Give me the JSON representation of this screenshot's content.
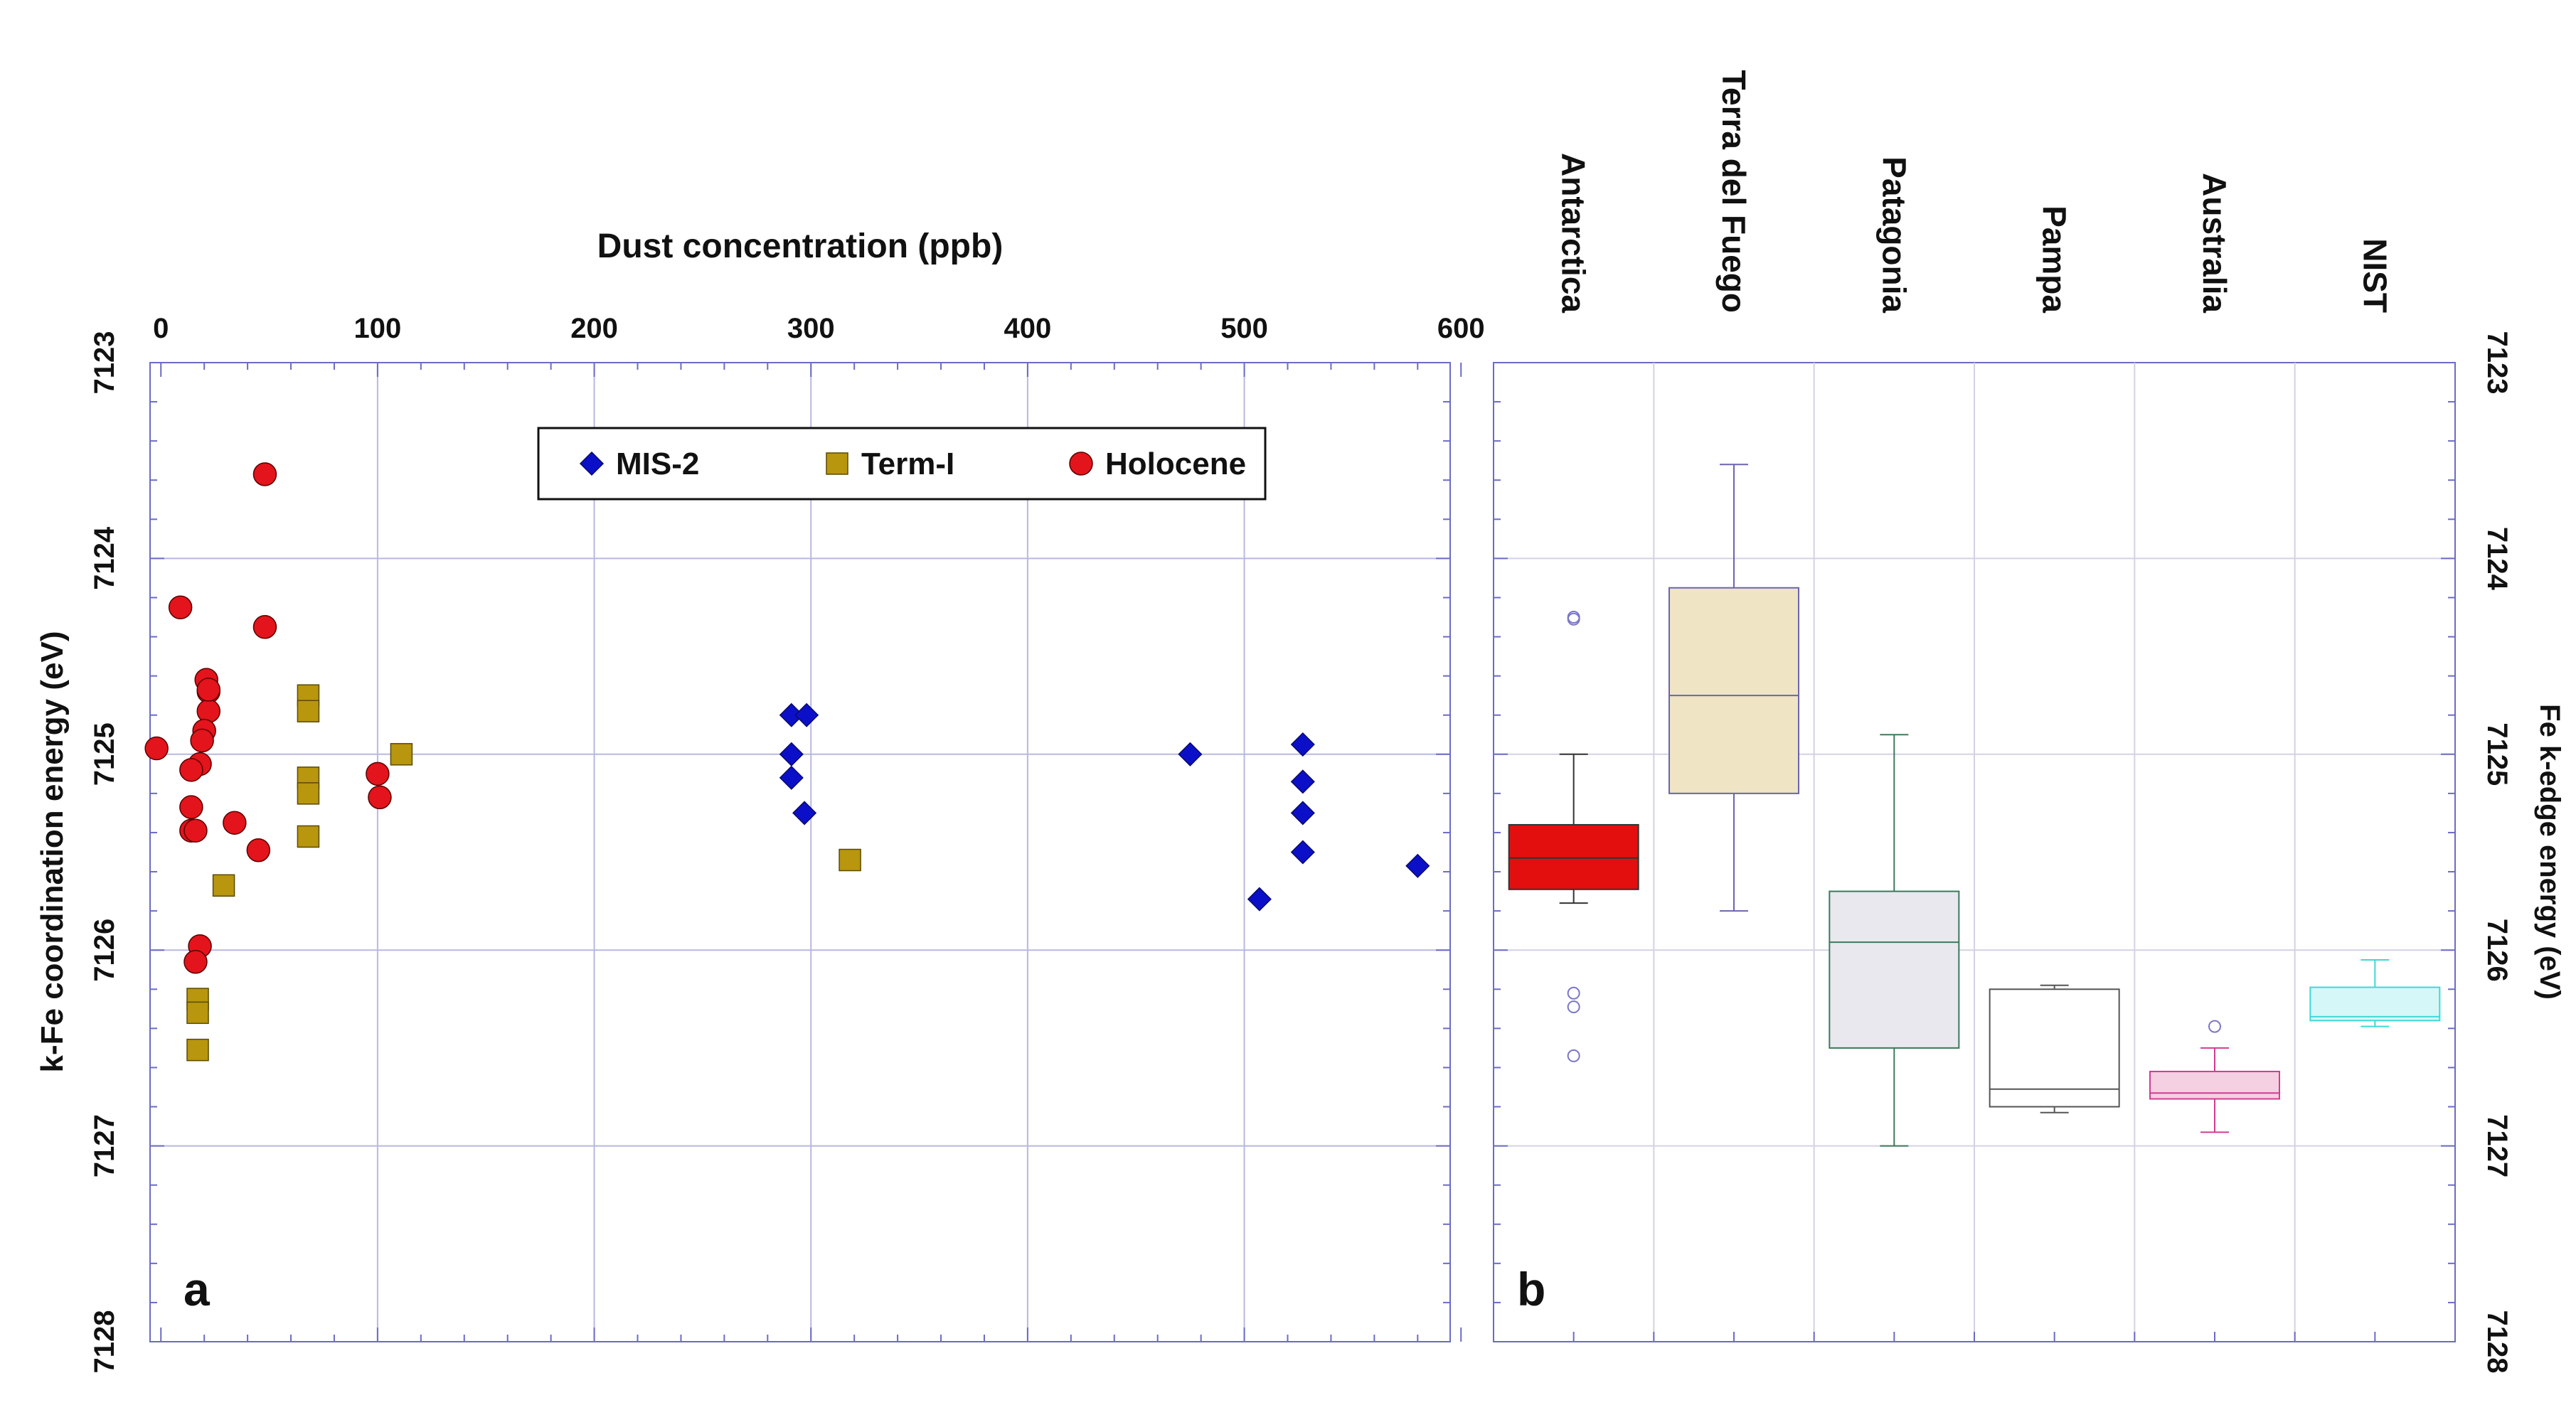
{
  "chart_data": [
    {
      "panel": "a",
      "type": "scatter",
      "panel_label": "a",
      "xlabel": "Dust concentration (ppb)",
      "ylabel": "k-Fe coordination energy (eV)",
      "xlim": [
        -5,
        595
      ],
      "ylim": [
        7123,
        7128
      ],
      "y_inverted": true,
      "x_ticks": [
        "0",
        "100",
        "200",
        "300",
        "400",
        "500",
        "600"
      ],
      "x_tick_values": [
        0,
        100,
        200,
        300,
        400,
        500,
        600
      ],
      "y_ticks": [
        "7123",
        "7124",
        "7125",
        "7126",
        "7127",
        "7128"
      ],
      "y_tick_values": [
        7123,
        7124,
        7125,
        7126,
        7127,
        7128
      ],
      "legend_position": "top-center",
      "series": [
        {
          "name": "MIS-2",
          "marker": "diamond",
          "color": "#0b10c8",
          "points": [
            [
              291,
              7124.8
            ],
            [
              298,
              7124.8
            ],
            [
              291,
              7125.0
            ],
            [
              291,
              7125.12
            ],
            [
              297,
              7125.3
            ],
            [
              475,
              7125.0
            ],
            [
              527,
              7124.95
            ],
            [
              527,
              7125.14
            ],
            [
              527,
              7125.3
            ],
            [
              527,
              7125.5
            ],
            [
              507,
              7125.74
            ],
            [
              580,
              7125.57
            ]
          ]
        },
        {
          "name": "Term-I",
          "marker": "square",
          "color": "#b8960e",
          "points": [
            [
              68,
              7124.7
            ],
            [
              68,
              7124.78
            ],
            [
              68,
              7125.12
            ],
            [
              68,
              7125.2
            ],
            [
              68,
              7125.42
            ],
            [
              111,
              7125.0
            ],
            [
              318,
              7125.54
            ],
            [
              29,
              7125.67
            ],
            [
              17,
              7126.25
            ],
            [
              17,
              7126.32
            ],
            [
              17,
              7126.51
            ]
          ]
        },
        {
          "name": "Holocene",
          "marker": "circle",
          "color": "#e3141b",
          "points": [
            [
              -2,
              7124.97
            ],
            [
              9,
              7124.25
            ],
            [
              14,
              7125.27
            ],
            [
              14,
              7125.39
            ],
            [
              16,
              7125.39
            ],
            [
              21,
              7124.62
            ],
            [
              22,
              7124.68
            ],
            [
              22,
              7124.78
            ],
            [
              20,
              7124.88
            ],
            [
              19,
              7124.93
            ],
            [
              18,
              7125.05
            ],
            [
              22,
              7124.67
            ],
            [
              34,
              7125.35
            ],
            [
              45,
              7125.49
            ],
            [
              48,
              7123.57
            ],
            [
              48,
              7124.35
            ],
            [
              100,
              7125.1
            ],
            [
              101,
              7125.22
            ],
            [
              18,
              7125.98
            ],
            [
              16,
              7126.06
            ],
            [
              14,
              7125.08
            ]
          ]
        }
      ]
    },
    {
      "panel": "b",
      "type": "box",
      "panel_label": "b",
      "ylabel": "Fe k-edge energy (eV)",
      "ylim": [
        7123,
        7128
      ],
      "y_inverted": true,
      "y_ticks": [
        "7123",
        "7124",
        "7125",
        "7126",
        "7127",
        "7128"
      ],
      "y_tick_values": [
        7123,
        7124,
        7125,
        7126,
        7127,
        7128
      ],
      "categories": [
        "Antarctica",
        "Terra del Fuego",
        "Patagonia",
        "Pampa",
        "Australia",
        "NIST"
      ],
      "boxes": [
        {
          "name": "Antarctica",
          "whisker_low": 7125.0,
          "q1": 7125.36,
          "median": 7125.53,
          "q3": 7125.69,
          "whisker_high": 7125.76,
          "outliers": [
            7124.3,
            7124.31,
            7126.22,
            7126.29,
            7126.54
          ],
          "fill": "#e30f0f",
          "stroke": "#333333"
        },
        {
          "name": "Terra del Fuego",
          "whisker_low": 7123.52,
          "q1": 7124.15,
          "median": 7124.7,
          "q3": 7125.2,
          "whisker_high": 7125.8,
          "outliers": [],
          "fill": "#efe4c4",
          "stroke": "#6a64b0"
        },
        {
          "name": "Patagonia",
          "whisker_low": 7124.9,
          "q1": 7125.7,
          "median": 7125.96,
          "q3": 7126.5,
          "whisker_high": 7127.0,
          "outliers": [],
          "fill": "#e8e8ee",
          "stroke": "#3d7a5c"
        },
        {
          "name": "Pampa",
          "whisker_low": 7126.18,
          "q1": 7126.2,
          "median": 7126.71,
          "q3": 7126.8,
          "whisker_high": 7126.83,
          "outliers": [],
          "fill": "#ffffff",
          "stroke": "#555555"
        },
        {
          "name": "Australia",
          "whisker_low": 7126.5,
          "q1": 7126.62,
          "median": 7126.73,
          "q3": 7126.76,
          "whisker_high": 7126.93,
          "outliers": [
            7126.39
          ],
          "fill": "#f5cfe2",
          "stroke": "#d23c92"
        },
        {
          "name": "NIST",
          "whisker_low": 7126.05,
          "q1": 7126.19,
          "median": 7126.34,
          "q3": 7126.36,
          "whisker_high": 7126.39,
          "outliers": [],
          "fill": "#d6f7f7",
          "stroke": "#3fd8d6"
        }
      ]
    }
  ]
}
